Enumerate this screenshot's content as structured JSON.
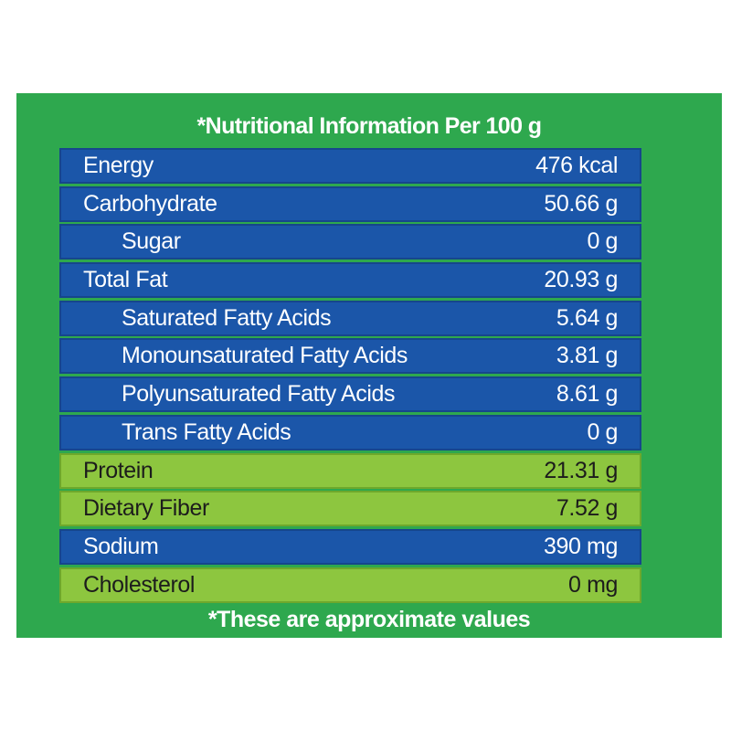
{
  "header": {
    "title": "*Nutritional Information Per 100 g"
  },
  "table": {
    "rows": [
      [
        "Energy",
        "476 kcal"
      ],
      [
        "Carbohydrate",
        "50.66 g"
      ],
      [
        "Sugar",
        "0 g"
      ],
      [
        "Total Fat",
        "20.93 g"
      ],
      [
        "Saturated Fatty Acids",
        "5.64 g"
      ],
      [
        "Monounsaturated Fatty Acids",
        "3.81 g"
      ],
      [
        "Polyunsaturated Fatty Acids",
        "8.61 g"
      ],
      [
        "Trans Fatty Acids",
        "0 g"
      ],
      [
        "Protein",
        "21.31 g"
      ],
      [
        "Dietary Fiber",
        "7.52 g"
      ],
      [
        "Sodium",
        "390 mg"
      ],
      [
        "Cholesterol",
        "0 mg"
      ]
    ]
  },
  "footer": {
    "note": "*These are approximate values"
  }
}
